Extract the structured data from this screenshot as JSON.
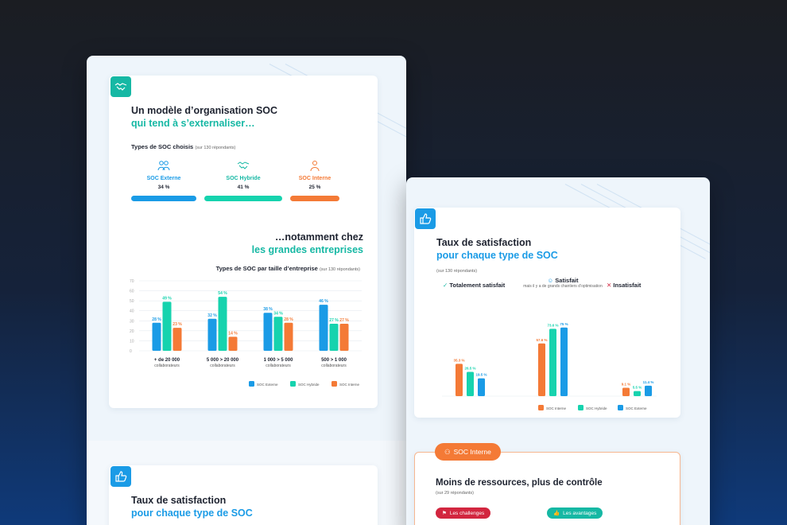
{
  "colors": {
    "teal": "#16b8a4",
    "blue": "#1a9be6",
    "orange": "#f47a36",
    "crimson": "#d2263f"
  },
  "left_card": {
    "icon": "handshake-icon",
    "title_line1": "Un modèle d’organisation SOC",
    "title_line2": "qui tend à s’externaliser…",
    "types_label": "Types de SOC choisis",
    "types_note": "(sur 130 répondants)",
    "types": [
      {
        "icon": "people-icon",
        "label": "SOC Externe",
        "pct": "34 %",
        "value": 34
      },
      {
        "icon": "handshake-icon",
        "label": "SOC Hybride",
        "pct": "41 %",
        "value": 41
      },
      {
        "icon": "person-icon",
        "label": "SOC Interne",
        "pct": "25 %",
        "value": 25
      }
    ],
    "subtitle_line1": "…notamment chez",
    "subtitle_line2": "les grandes entreprises"
  },
  "left_bottom_card": {
    "icon": "thumbs-up-icon",
    "title_line1": "Taux de satisfaction",
    "title_line2": "pour chaque type de SOC"
  },
  "right_card": {
    "icon": "thumbs-up-icon",
    "title_line1": "Taux de satisfaction",
    "title_line2": "pour chaque type de SOC",
    "note": "(sur 130 répondants)",
    "headers": [
      {
        "icon": "check-icon",
        "label": "Totalement satisfait",
        "sub": ""
      },
      {
        "icon": "meh-face-icon",
        "label": "Satisfait",
        "sub": "mais il y a de grands chantiers d’optimisation"
      },
      {
        "icon": "cross-icon",
        "label": "Insatisfait",
        "sub": ""
      }
    ]
  },
  "interne_card": {
    "tag_icon": "person-icon",
    "tag": "SOC Interne",
    "title": "Moins de ressources, plus de contrôle",
    "note": "(sur 29 répondants)",
    "btn_challenges": "Les challenges",
    "btn_avantages": "Les avantages"
  },
  "chart_data": [
    {
      "type": "bar",
      "title": "Types de SOC par taille d’entreprise",
      "note": "(sur 130 répondants)",
      "categories": [
        "+ de 20 000 collaborateurs",
        "5 000 > 20 000 collaborateurs",
        "1 000 > 5 000 collaborateurs",
        "500 > 1 000 collaborateurs"
      ],
      "category_lines": [
        [
          "+ de 20 000",
          "collaborateurs"
        ],
        [
          "5 000 > 20 000",
          "collaborateurs"
        ],
        [
          "1 000 > 5 000",
          "collaborateurs"
        ],
        [
          "500 > 1 000",
          "collaborateurs"
        ]
      ],
      "series": [
        {
          "name": "SOC Externe",
          "color": "#1a9be6",
          "values": [
            28,
            32,
            38,
            46
          ],
          "labels": [
            "28 %",
            "32 %",
            "38 %",
            "46 %"
          ]
        },
        {
          "name": "SOC Hybride",
          "color": "#16d3ae",
          "values": [
            49,
            54,
            34,
            27
          ],
          "labels": [
            "49 %",
            "54 %",
            "34 %",
            "27 %"
          ]
        },
        {
          "name": "SOC Interne",
          "color": "#f47a36",
          "values": [
            23,
            14,
            28,
            27
          ],
          "labels": [
            "23 %",
            "14 %",
            "28 %",
            "27 %"
          ]
        }
      ],
      "yticks": [
        0,
        10,
        20,
        30,
        40,
        50,
        60,
        70
      ],
      "ylim": [
        0,
        70
      ],
      "grid": true,
      "legend": "bottom-right"
    },
    {
      "type": "bar",
      "title": "Taux de satisfaction pour chaque type de SOC",
      "categories": [
        "Totalement satisfait",
        "Satisfait",
        "Insatisfait"
      ],
      "series": [
        {
          "name": "SOC Interne",
          "color": "#f47a36",
          "values": [
            35.3,
            57.6,
            9.1
          ],
          "labels": [
            "35.3 %",
            "57.6 %",
            "9.1 %"
          ]
        },
        {
          "name": "SOC Hybride",
          "color": "#16d3ae",
          "values": [
            26.5,
            73.6,
            5.5
          ],
          "labels": [
            "26.5 %",
            "73.6 %",
            "5.5 %"
          ]
        },
        {
          "name": "SOC Externe",
          "color": "#1a9be6",
          "values": [
            19.5,
            75,
            11.4
          ],
          "labels": [
            "19.5 %",
            "75 %",
            "11.4 %"
          ]
        }
      ],
      "ylim": [
        0,
        80
      ],
      "grid": false,
      "legend": "bottom-center"
    }
  ]
}
